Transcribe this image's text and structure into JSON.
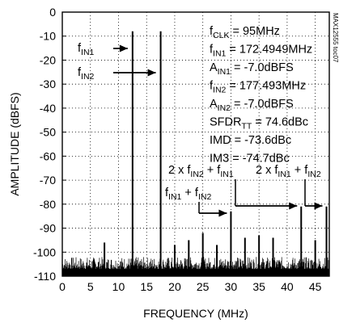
{
  "chart_data": {
    "type": "line",
    "title": "",
    "xlabel": "FREQUENCY (MHz)",
    "ylabel": "AMPLITUDE (dBFS)",
    "xlim": [
      0,
      47.5
    ],
    "ylim": [
      -110,
      0
    ],
    "x_ticks": [
      0,
      5,
      10,
      15,
      20,
      25,
      30,
      35,
      40,
      45
    ],
    "y_ticks": [
      0,
      -10,
      -20,
      -30,
      -40,
      -50,
      -60,
      -70,
      -80,
      -90,
      -100,
      -110
    ],
    "grid": true,
    "noise_floor": [
      -110,
      -102
    ],
    "peaks": [
      {
        "x": 12.5,
        "y": -8
      },
      {
        "x": 17.5,
        "y": -8
      },
      {
        "x": 7.5,
        "y": -96
      },
      {
        "x": 20.0,
        "y": -97
      },
      {
        "x": 22.5,
        "y": -95
      },
      {
        "x": 25.0,
        "y": -92
      },
      {
        "x": 27.5,
        "y": -97
      },
      {
        "x": 30.0,
        "y": -83
      },
      {
        "x": 32.5,
        "y": -94
      },
      {
        "x": 35.0,
        "y": -93
      },
      {
        "x": 37.5,
        "y": -94
      },
      {
        "x": 42.5,
        "y": -81
      },
      {
        "x": 45.0,
        "y": -95
      },
      {
        "x": 47.0,
        "y": -81
      }
    ],
    "annotations": [
      {
        "base": "f",
        "sub": "CLK",
        "rest": " = 95MHz"
      },
      {
        "base": "f",
        "sub": "IN1",
        "rest": " = 172.4949MHz"
      },
      {
        "base": "A",
        "sub": "IN1",
        "rest": " = -7.0dBFS"
      },
      {
        "base": "f",
        "sub": "IN2",
        "rest": " = 177.493MHz"
      },
      {
        "base": "A",
        "sub": "IN2",
        "rest": " = -7.0dBFS"
      },
      {
        "base": "SFDR",
        "sub": "TT",
        "rest": " = 74.6dBc"
      },
      {
        "base": "IMD = -73.6dBc",
        "sub": "",
        "rest": ""
      },
      {
        "base": "IM3 = -74.7dBc",
        "sub": "",
        "rest": ""
      }
    ],
    "labels": {
      "fin1": {
        "base": "f",
        "sub": "IN1"
      },
      "fin2": {
        "base": "f",
        "sub": "IN2"
      },
      "sum": {
        "p1": "f",
        "s1": "IN1",
        "p2": " + f",
        "s2": "IN2"
      },
      "im3a": {
        "p1": "2 x f",
        "s1": "IN2",
        "p2": " + f",
        "s2": "IN1"
      },
      "im3b": {
        "p1": "2 x f",
        "s1": "IN1",
        "p2": " + f",
        "s2": "IN2"
      }
    },
    "watermark": "MAX12555 toc07"
  }
}
